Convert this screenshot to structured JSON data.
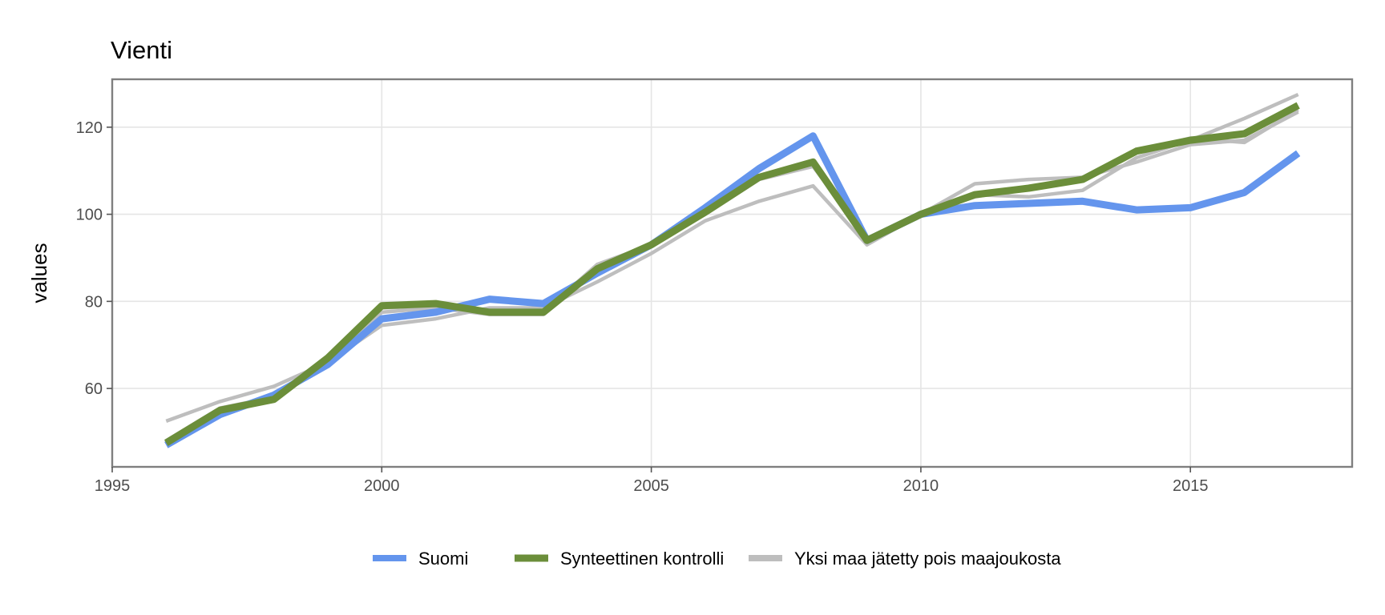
{
  "chart_data": {
    "type": "line",
    "title": "Vienti",
    "xlabel": "",
    "ylabel": "values",
    "xlim": [
      1995,
      2018
    ],
    "ylim": [
      42,
      131
    ],
    "x_ticks": [
      1995,
      2000,
      2005,
      2010,
      2015
    ],
    "y_ticks": [
      60,
      80,
      100,
      120
    ],
    "grid": true,
    "legend_position": "bottom",
    "legend": [
      {
        "label": "Suomi",
        "color": "#6495ED"
      },
      {
        "label": "Synteettinen kontrolli",
        "color": "#6B8E3A"
      },
      {
        "label": "Yksi maa jätetty pois maajoukosta",
        "color": "#BEBEBE"
      }
    ],
    "x": [
      1996,
      1997,
      1998,
      1999,
      2000,
      2001,
      2002,
      2003,
      2004,
      2005,
      2006,
      2007,
      2008,
      2009,
      2010,
      2011,
      2012,
      2013,
      2014,
      2015,
      2016,
      2017
    ],
    "leave_one_out_series": [
      {
        "values": [
          52.5,
          57.0,
          60.5,
          66.0,
          74.5,
          76.0,
          78.5,
          78.5,
          84.5,
          91.0,
          98.5,
          103.0,
          106.5,
          93.0,
          100.0,
          107.0,
          108.0,
          108.5,
          112.0,
          116.0,
          117.0,
          123.5
        ]
      },
      {
        "values": [
          48.0,
          55.5,
          58.0,
          67.5,
          78.5,
          79.0,
          77.5,
          77.5,
          88.5,
          93.0,
          100.5,
          108.5,
          112.0,
          94.0,
          100.0,
          104.5,
          104.0,
          105.5,
          113.0,
          117.0,
          122.0,
          127.5
        ]
      },
      {
        "values": [
          47.5,
          54.5,
          57.5,
          66.5,
          77.5,
          78.5,
          77.0,
          77.0,
          88.0,
          93.0,
          100.0,
          108.0,
          111.0,
          94.5,
          100.0,
          104.0,
          106.0,
          108.0,
          114.5,
          117.5,
          116.5,
          124.0
        ]
      }
    ],
    "series": [
      {
        "name": "Suomi",
        "color": "#6495ED",
        "values": [
          47.0,
          54.0,
          58.5,
          65.5,
          76.0,
          77.5,
          80.5,
          79.5,
          86.5,
          93.0,
          101.5,
          110.5,
          118.0,
          94.0,
          100.0,
          102.0,
          102.5,
          103.0,
          101.0,
          101.5,
          105.0,
          114.0
        ]
      },
      {
        "name": "Synteettinen kontrolli",
        "color": "#6B8E3A",
        "values": [
          47.5,
          55.0,
          57.5,
          67.0,
          79.0,
          79.5,
          77.5,
          77.5,
          87.5,
          93.0,
          100.5,
          108.5,
          112.0,
          94.0,
          100.0,
          104.5,
          106.0,
          108.0,
          114.5,
          117.0,
          118.5,
          125.0
        ]
      }
    ]
  }
}
